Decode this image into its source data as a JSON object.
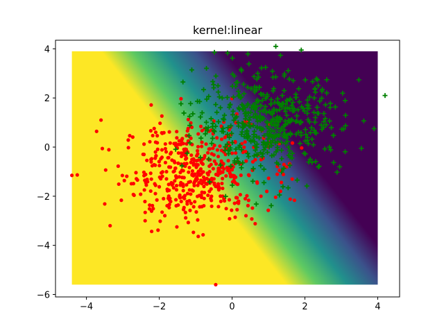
{
  "chart_data": {
    "type": "scatter",
    "title": "kernel:linear",
    "xlabel": "",
    "ylabel": "",
    "xlim": [
      -4.85,
      4.6
    ],
    "ylim": [
      -6.1,
      4.35
    ],
    "x_ticks": [
      -4,
      -2,
      0,
      2,
      4
    ],
    "y_ticks": [
      -6,
      -4,
      -2,
      0,
      2,
      4
    ],
    "x_tick_labels": [
      "−4",
      "−2",
      "0",
      "2",
      "4"
    ],
    "y_tick_labels": [
      "−6",
      "−4",
      "−2",
      "0",
      "2",
      "4"
    ],
    "grid": false,
    "legend": "none",
    "background": {
      "type": "decision_function_heatmap",
      "x_range": [
        -4.4,
        4.0
      ],
      "y_range": [
        -5.6,
        3.9
      ],
      "colormap": "viridis",
      "colors": [
        "#440154",
        "#3b528b",
        "#21918c",
        "#5ec962",
        "#fde725"
      ],
      "boundary": {
        "slope": -0.85,
        "intercept": 0.35
      }
    },
    "series": [
      {
        "marker": "circle",
        "color": "#ff0000",
        "count": 500,
        "center": [
          -1.0,
          -1.0
        ],
        "spread": 1.0,
        "extra_points": [
          [
            -4.4,
            -1.15
          ],
          [
            -0.45,
            -5.6
          ],
          [
            -3.35,
            -3.2
          ],
          [
            -3.6,
            1.1
          ],
          [
            -2.1,
            0.2
          ],
          [
            1.3,
            -0.95
          ],
          [
            1.65,
            -1.3
          ]
        ]
      },
      {
        "marker": "plus",
        "color": "#008000",
        "count": 500,
        "center": [
          1.0,
          1.0
        ],
        "spread": 1.0,
        "extra_points": [
          [
            4.2,
            2.1
          ],
          [
            1.2,
            4.1
          ],
          [
            1.9,
            3.95
          ],
          [
            3.9,
            0.75
          ],
          [
            -1.35,
            2.65
          ],
          [
            1.3,
            -1.95
          ],
          [
            3.55,
            -0.05
          ]
        ]
      }
    ]
  }
}
